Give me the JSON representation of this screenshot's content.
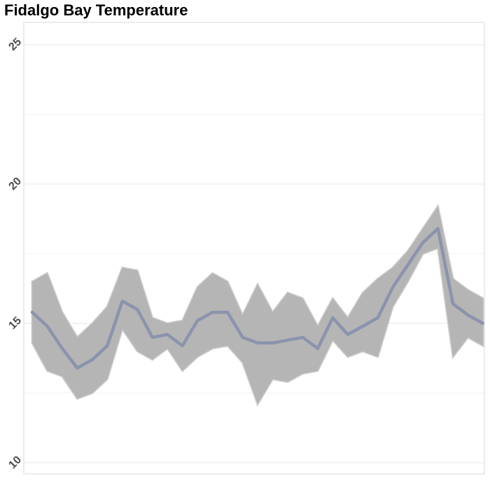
{
  "chart_data": {
    "type": "area",
    "title": "Fidalgo Bay Temperature",
    "xlabel": "",
    "ylabel": "",
    "ylim": [
      9.6,
      25.8
    ],
    "y_ticks": [
      10,
      15,
      20,
      25
    ],
    "grid": true,
    "legend": "none",
    "colors": {
      "band": "#b5b5b5",
      "band_light": "#cfcfcf",
      "line": "#8b93ad",
      "grid": "#ebebeb",
      "border": "#d9d9d9"
    },
    "x": [
      1,
      2,
      3,
      4,
      5,
      6,
      7,
      8,
      9,
      10,
      11,
      12,
      13,
      14,
      15,
      16,
      17,
      18,
      19,
      20,
      21,
      22,
      23,
      24,
      25,
      26,
      27,
      28,
      29,
      30,
      31
    ],
    "series": [
      {
        "values": [
          15.4,
          14.9,
          14.1,
          13.4,
          13.7,
          14.2,
          15.8,
          15.5,
          14.5,
          14.6,
          14.2,
          15.1,
          15.4,
          15.4,
          14.5,
          14.3,
          14.3,
          14.4,
          14.5,
          14.1,
          15.2,
          14.6,
          14.9,
          15.2,
          16.3,
          17.1,
          17.9,
          18.4,
          15.7,
          15.3,
          15.0
        ],
        "lower": [
          14.3,
          13.3,
          13.1,
          12.3,
          12.5,
          13.0,
          14.8,
          14.0,
          13.7,
          14.1,
          13.3,
          13.8,
          14.1,
          14.2,
          13.6,
          12.1,
          13.0,
          12.9,
          13.2,
          13.3,
          14.4,
          13.8,
          14.0,
          13.8,
          15.6,
          16.5,
          17.5,
          17.7,
          13.8,
          14.5,
          14.2
        ],
        "upper": [
          16.5,
          16.8,
          15.4,
          14.5,
          15.0,
          15.6,
          17.0,
          16.9,
          15.2,
          15.0,
          15.1,
          16.3,
          16.8,
          16.5,
          15.3,
          16.4,
          15.4,
          16.1,
          15.9,
          14.9,
          15.9,
          15.2,
          16.1,
          16.6,
          17.0,
          17.6,
          18.4,
          19.2,
          16.6,
          16.2,
          15.9
        ]
      }
    ]
  }
}
